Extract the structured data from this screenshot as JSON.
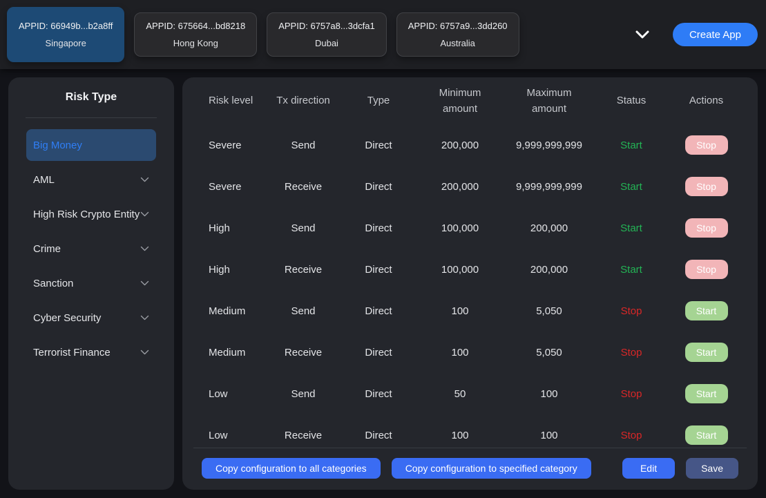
{
  "topbar": {
    "apps": [
      {
        "appid": "APPID: 66949b...b2a8ff",
        "region": "Singapore",
        "selected": true
      },
      {
        "appid": "APPID: 675664...bd8218",
        "region": "Hong Kong",
        "selected": false
      },
      {
        "appid": "APPID: 6757a8...3dcfa1",
        "region": "Dubai",
        "selected": false
      },
      {
        "appid": "APPID: 6757a9...3dd260",
        "region": "Australia",
        "selected": false
      }
    ],
    "create_app_label": "Create App"
  },
  "sidebar": {
    "title": "Risk Type",
    "items": [
      {
        "label": "Big Money",
        "selected": true,
        "chevron": false
      },
      {
        "label": "AML",
        "selected": false,
        "chevron": true
      },
      {
        "label": "High Risk Crypto Entity",
        "selected": false,
        "chevron": true
      },
      {
        "label": "Crime",
        "selected": false,
        "chevron": true
      },
      {
        "label": "Sanction",
        "selected": false,
        "chevron": true
      },
      {
        "label": "Cyber Security",
        "selected": false,
        "chevron": true
      },
      {
        "label": "Terrorist Finance",
        "selected": false,
        "chevron": true
      }
    ]
  },
  "table": {
    "columns": [
      "Risk level",
      "Tx direction",
      "Type",
      "Minimum amount",
      "Maximum amount",
      "Status",
      "Actions"
    ],
    "rows": [
      {
        "risk_level": "Severe",
        "tx_direction": "Send",
        "type": "Direct",
        "min": "200,000",
        "max": "9,999,999,999",
        "status": "Start",
        "action": "Stop"
      },
      {
        "risk_level": "Severe",
        "tx_direction": "Receive",
        "type": "Direct",
        "min": "200,000",
        "max": "9,999,999,999",
        "status": "Start",
        "action": "Stop"
      },
      {
        "risk_level": "High",
        "tx_direction": "Send",
        "type": "Direct",
        "min": "100,000",
        "max": "200,000",
        "status": "Start",
        "action": "Stop"
      },
      {
        "risk_level": "High",
        "tx_direction": "Receive",
        "type": "Direct",
        "min": "100,000",
        "max": "200,000",
        "status": "Start",
        "action": "Stop"
      },
      {
        "risk_level": "Medium",
        "tx_direction": "Send",
        "type": "Direct",
        "min": "100",
        "max": "5,050",
        "status": "Stop",
        "action": "Start"
      },
      {
        "risk_level": "Medium",
        "tx_direction": "Receive",
        "type": "Direct",
        "min": "100",
        "max": "5,050",
        "status": "Stop",
        "action": "Start"
      },
      {
        "risk_level": "Low",
        "tx_direction": "Send",
        "type": "Direct",
        "min": "50",
        "max": "100",
        "status": "Stop",
        "action": "Start"
      },
      {
        "risk_level": "Low",
        "tx_direction": "Receive",
        "type": "Direct",
        "min": "100",
        "max": "100",
        "status": "Stop",
        "action": "Start"
      }
    ]
  },
  "footer": {
    "copy_all_label": "Copy configuration to all categories",
    "copy_specified_label": "Copy configuration to specified category",
    "edit_label": "Edit",
    "save_label": "Save"
  },
  "colors": {
    "accent_blue": "#2e7cf6",
    "footer_blue": "#3a6cf3",
    "save_blue": "#465687",
    "selected_card_bg": "#1d4a75",
    "selected_item_bg": "#2b4a70",
    "selected_item_text": "#2f7ef5",
    "status_start_green": "#23b455",
    "status_stop_red": "#da2727",
    "action_stop_pink": "#f2b5b8",
    "action_start_green": "#a5d493",
    "panel_bg": "#24262c",
    "topbar_bg": "#1e1f23",
    "page_bg": "#121318"
  }
}
